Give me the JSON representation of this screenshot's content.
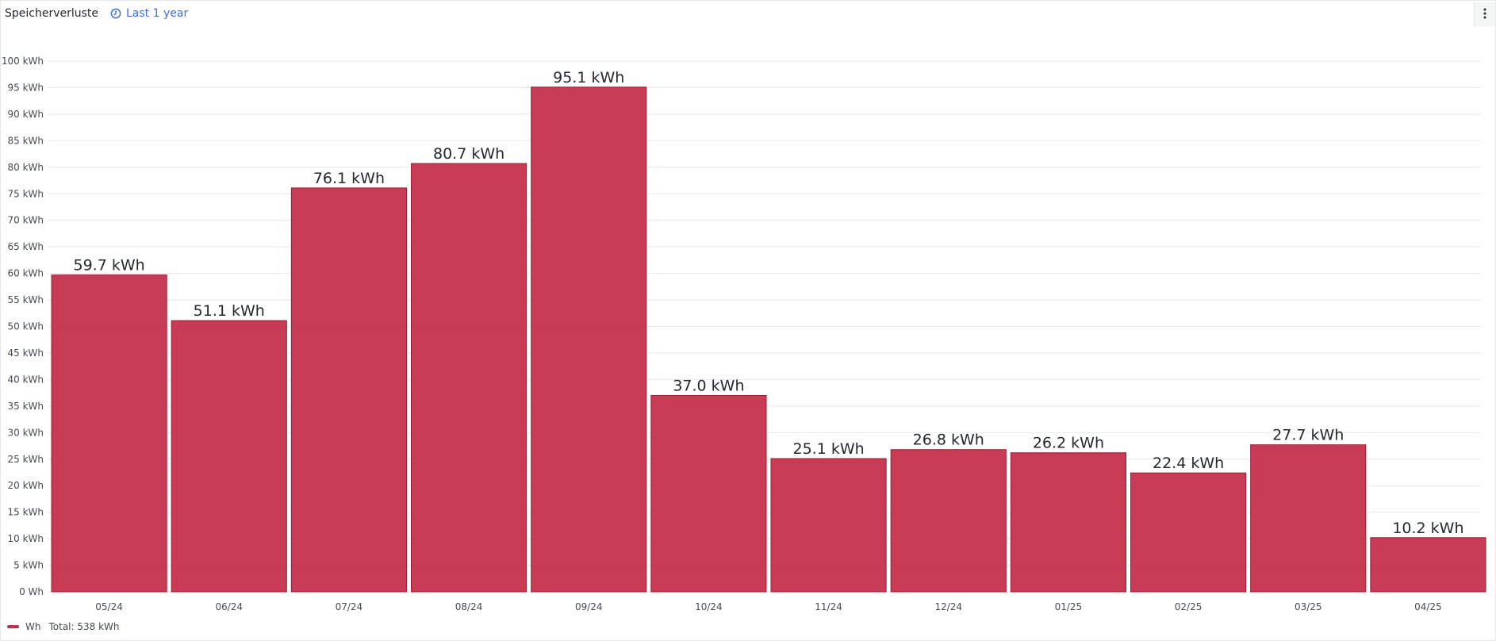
{
  "panel": {
    "title": "Speicherverluste",
    "time_range": "Last 1 year",
    "icons": {
      "time": "clock-icon",
      "menu": "kebab-menu-icon"
    }
  },
  "legend": {
    "series_name": "Wh",
    "total_label": "Total: 538 kWh",
    "color": "#c4314b"
  },
  "chart_data": {
    "type": "bar",
    "categories": [
      "05/24",
      "06/24",
      "07/24",
      "08/24",
      "09/24",
      "10/24",
      "11/24",
      "12/24",
      "01/25",
      "02/25",
      "03/25",
      "04/25"
    ],
    "series": [
      {
        "name": "Wh",
        "values": [
          59.7,
          51.1,
          76.1,
          80.7,
          95.1,
          37.0,
          25.1,
          26.8,
          26.2,
          22.4,
          27.7,
          10.2
        ],
        "value_labels": [
          "59.7 kWh",
          "51.1 kWh",
          "76.1 kWh",
          "80.7 kWh",
          "95.1 kWh",
          "37.0 kWh",
          "25.1 kWh",
          "26.8 kWh",
          "26.2 kWh",
          "22.4 kWh",
          "27.7 kWh",
          "10.2 kWh"
        ],
        "color": "#c4314b"
      }
    ],
    "ylim": [
      0,
      100
    ],
    "y_ticks": [
      "0 Wh",
      "5 kWh",
      "10 kWh",
      "15 kWh",
      "20 kWh",
      "25 kWh",
      "30 kWh",
      "35 kWh",
      "40 kWh",
      "45 kWh",
      "50 kWh",
      "55 kWh",
      "60 kWh",
      "65 kWh",
      "70 kWh",
      "75 kWh",
      "80 kWh",
      "85 kWh",
      "90 kWh",
      "95 kWh",
      "100 kWh"
    ],
    "grid": true,
    "legend_position": "bottom-left"
  }
}
